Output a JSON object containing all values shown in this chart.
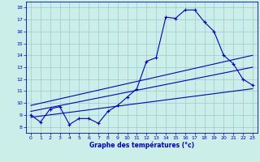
{
  "xlabel": "Graphe des températures (°c)",
  "bg_color": "#cceee8",
  "line_color": "#0000cc",
  "grid_color": "#99cccc",
  "xlim": [
    -0.5,
    23.5
  ],
  "ylim": [
    7.5,
    18.5
  ],
  "xticks": [
    0,
    1,
    2,
    3,
    4,
    5,
    6,
    7,
    8,
    9,
    10,
    11,
    12,
    13,
    14,
    15,
    16,
    17,
    18,
    19,
    20,
    21,
    22,
    23
  ],
  "yticks": [
    8,
    9,
    10,
    11,
    12,
    13,
    14,
    15,
    16,
    17,
    18
  ],
  "line1_x": [
    0,
    1,
    2,
    3,
    4,
    5,
    6,
    7,
    8,
    9,
    10,
    11,
    12,
    13,
    14,
    15,
    16,
    17,
    18,
    19,
    20,
    21,
    22,
    23
  ],
  "line1_y": [
    9.0,
    8.4,
    9.5,
    9.7,
    8.2,
    8.7,
    8.7,
    8.3,
    9.3,
    9.8,
    10.5,
    11.2,
    13.5,
    13.8,
    17.2,
    17.1,
    17.8,
    17.8,
    16.8,
    16.0,
    14.0,
    13.3,
    12.0,
    11.5
  ],
  "line2_x": [
    0,
    23
  ],
  "line2_y": [
    8.8,
    11.2
  ],
  "line3_x": [
    0,
    23
  ],
  "line3_y": [
    9.3,
    13.0
  ],
  "line4_x": [
    0,
    23
  ],
  "line4_y": [
    9.8,
    14.0
  ]
}
